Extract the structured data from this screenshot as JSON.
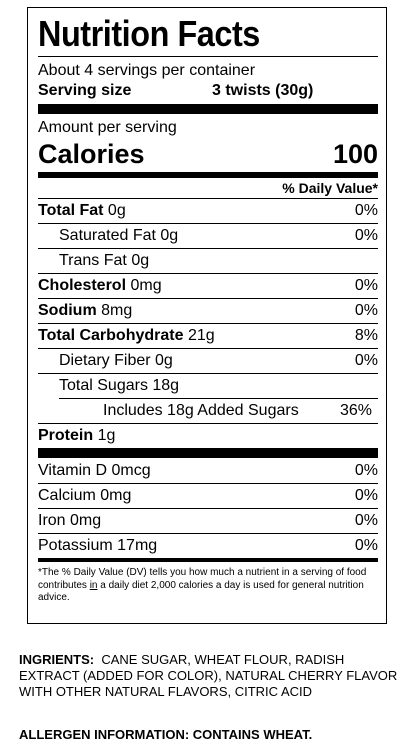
{
  "label": {
    "title": "Nutrition Facts",
    "servings_per_container": "About 4 servings per container",
    "serving_size_label": "Serving size",
    "serving_size_value": "3 twists (30g)",
    "amount_per_serving": "Amount per serving",
    "calories_label": "Calories",
    "calories_value": "100",
    "daily_value_header": "% Daily Value*",
    "nutrients": [
      {
        "bold": "Total Fat",
        "rest": " 0g",
        "dv": "0%"
      },
      {
        "bold": "",
        "rest": "Saturated Fat 0g",
        "dv": "0%"
      },
      {
        "bold": "",
        "rest": "Trans Fat 0g",
        "dv": ""
      },
      {
        "bold": "Cholesterol",
        "rest": " 0mg",
        "dv": "0%"
      },
      {
        "bold": "Sodium",
        "rest": " 8mg",
        "dv": "0%"
      },
      {
        "bold": "Total Carbohydrate",
        "rest": " 21g",
        "dv": "8%"
      },
      {
        "bold": "",
        "rest": "Dietary Fiber 0g",
        "dv": "0%"
      },
      {
        "bold": "",
        "rest": "Total Sugars 18g",
        "dv": ""
      },
      {
        "bold": "",
        "rest": "Includes 18g Added Sugars",
        "dv": "36%"
      },
      {
        "bold": "Protein",
        "rest": " 1g",
        "dv": ""
      }
    ],
    "vitamins": [
      {
        "name": "Vitamin D 0mcg",
        "dv": "0%"
      },
      {
        "name": "Calcium 0mg",
        "dv": "0%"
      },
      {
        "name": "Iron 0mg",
        "dv": "0%"
      },
      {
        "name": "Potassium 17mg",
        "dv": "0%"
      }
    ],
    "footnote_before": "*The % Daily Value (DV) tells you how much a nutrient in a serving of food contributes ",
    "footnote_underlined": "in",
    "footnote_after": " a daily diet 2,000 calories a day is used for general nutrition advice."
  },
  "ingredients": {
    "label": "INGRIENTS:",
    "text": "  CANE SUGAR, WHEAT FLOUR, RADISH EXTRACT (ADDED FOR COLOR), NATURAL CHERRY FLAVOR WITH OTHER NATURAL FLAVORS, CITRIC ACID"
  },
  "allergen": "ALLERGEN INFORMATION: CONTAINS WHEAT."
}
